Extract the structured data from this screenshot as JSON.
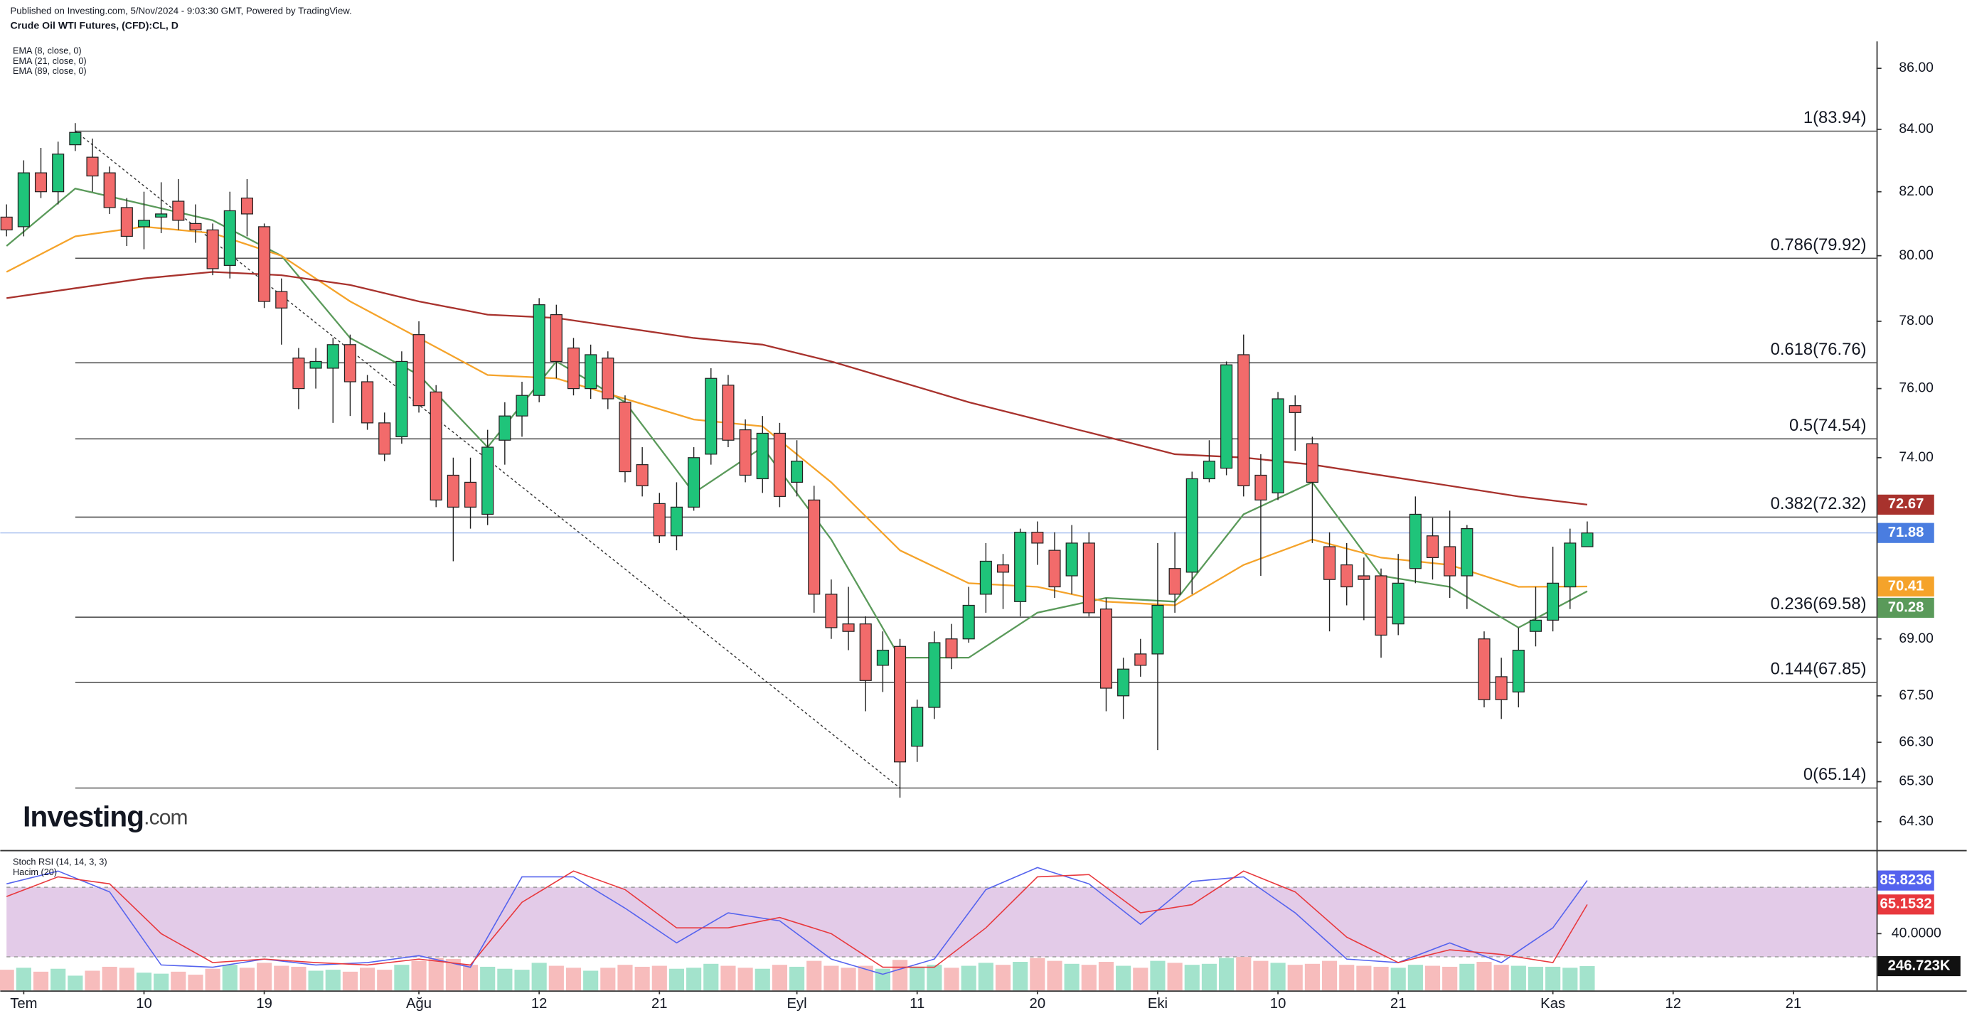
{
  "header": "Published on Investing.com, 5/Nov/2024 - 9:03:30 GMT, Powered by TradingView.",
  "logo": {
    "name": "Investing",
    "suffix": ".com"
  },
  "chart_data": {
    "type": "candlestick",
    "title": "Crude Oil WTI Futures, (CFD):CL, D",
    "log_scale": true,
    "categories": [
      null,
      "Tem",
      null,
      null,
      null,
      null,
      null,
      null,
      "10",
      null,
      null,
      null,
      null,
      null,
      null,
      "19",
      null,
      null,
      null,
      null,
      null,
      null,
      null,
      null,
      "Ağu",
      null,
      null,
      null,
      null,
      null,
      null,
      "12",
      null,
      null,
      null,
      null,
      null,
      null,
      "21",
      null,
      null,
      null,
      null,
      null,
      null,
      null,
      "Eyl",
      null,
      null,
      null,
      null,
      null,
      null,
      "11",
      null,
      null,
      null,
      null,
      null,
      null,
      "20",
      null,
      null,
      null,
      null,
      null,
      null,
      "Eki",
      null,
      null,
      null,
      null,
      null,
      null,
      "10",
      null,
      null,
      null,
      null,
      null,
      null,
      "21",
      null,
      null,
      null,
      null,
      null,
      null,
      null,
      null,
      "Kas",
      null,
      null,
      null,
      null,
      null,
      null,
      "12",
      null,
      null,
      null,
      null,
      null,
      null,
      "21",
      null,
      null,
      null
    ],
    "open": [
      81.2,
      80.9,
      82.6,
      82.0,
      83.5,
      83.1,
      82.6,
      81.5,
      80.9,
      81.2,
      81.7,
      81.0,
      80.8,
      79.7,
      81.8,
      80.9,
      78.9,
      76.9,
      76.6,
      76.6,
      77.3,
      76.2,
      75.0,
      74.6,
      77.6,
      75.9,
      73.5,
      73.3,
      72.4,
      74.5,
      75.2,
      75.8,
      78.2,
      77.2,
      76.0,
      76.9,
      75.6,
      73.8,
      72.7,
      71.8,
      72.6,
      74.1,
      76.1,
      74.8,
      73.4,
      74.7,
      73.3,
      72.8,
      70.2,
      69.4,
      69.4,
      68.3,
      68.8,
      66.2,
      67.2,
      69.0,
      69.0,
      70.2,
      71.0,
      70.0,
      71.9,
      71.4,
      70.7,
      71.6,
      69.8,
      67.5,
      68.6,
      68.6,
      70.9,
      70.8,
      73.4,
      73.7,
      77.0,
      73.5,
      73.0,
      75.5,
      74.4,
      71.5,
      71.0,
      70.7,
      70.7,
      69.4,
      70.9,
      71.8,
      71.5,
      70.7,
      69.0,
      68.0,
      67.6,
      69.2,
      69.5,
      70.4,
      71.5,
      null,
      null,
      null,
      null,
      null,
      null,
      null,
      null,
      null,
      null,
      null,
      null,
      null,
      null,
      null
    ],
    "high": [
      81.6,
      83.0,
      83.4,
      83.6,
      84.2,
      83.7,
      82.8,
      81.8,
      82.0,
      82.3,
      82.4,
      81.6,
      81.0,
      82.0,
      82.4,
      81.0,
      79.3,
      77.2,
      77.2,
      77.5,
      77.6,
      76.4,
      75.3,
      77.1,
      78.0,
      76.1,
      74.0,
      74.0,
      74.8,
      75.6,
      76.2,
      78.7,
      78.5,
      77.5,
      77.3,
      77.1,
      75.8,
      74.3,
      73.0,
      73.3,
      74.3,
      76.6,
      76.4,
      75.1,
      75.2,
      75.0,
      74.5,
      73.2,
      70.6,
      70.4,
      69.6,
      69.2,
      69.0,
      67.4,
      69.2,
      69.4,
      70.4,
      71.6,
      71.3,
      72.0,
      72.2,
      71.9,
      72.1,
      71.9,
      70.1,
      68.5,
      69.0,
      71.6,
      71.9,
      73.6,
      74.5,
      76.8,
      77.6,
      74.1,
      75.9,
      75.8,
      74.6,
      71.9,
      71.6,
      71.2,
      70.9,
      71.3,
      72.9,
      72.3,
      72.5,
      72.1,
      69.2,
      68.5,
      69.3,
      70.4,
      71.5,
      72.0,
      72.2,
      null,
      null,
      null,
      null,
      null,
      null,
      null,
      null,
      null,
      null,
      null,
      null,
      null,
      null,
      null
    ],
    "low": [
      80.6,
      80.6,
      81.8,
      81.6,
      83.3,
      82.0,
      81.3,
      80.3,
      80.2,
      80.7,
      80.8,
      80.4,
      79.4,
      79.3,
      80.6,
      78.4,
      77.3,
      75.4,
      76.0,
      75.0,
      75.2,
      74.8,
      73.9,
      74.4,
      75.3,
      72.6,
      71.1,
      72.0,
      72.1,
      73.8,
      74.6,
      75.6,
      76.3,
      75.8,
      75.7,
      75.4,
      73.3,
      72.9,
      71.6,
      71.4,
      72.5,
      73.8,
      74.3,
      73.3,
      73.0,
      72.6,
      72.9,
      69.7,
      69.0,
      68.7,
      67.1,
      67.6,
      64.9,
      65.8,
      66.9,
      68.2,
      68.9,
      69.7,
      69.8,
      69.6,
      71.0,
      70.1,
      70.2,
      69.6,
      67.1,
      66.9,
      68.0,
      66.1,
      69.7,
      70.2,
      73.3,
      73.5,
      72.9,
      70.7,
      72.8,
      74.2,
      71.6,
      69.2,
      69.9,
      69.5,
      68.5,
      69.1,
      70.5,
      70.6,
      70.1,
      69.8,
      67.2,
      66.9,
      67.2,
      68.8,
      69.2,
      69.8,
      71.6,
      null,
      null,
      null,
      null,
      null,
      null,
      null,
      null,
      null,
      null,
      null,
      null,
      null,
      null,
      null
    ],
    "close": [
      80.8,
      82.6,
      82.0,
      83.2,
      83.9,
      82.5,
      81.5,
      80.6,
      81.1,
      81.3,
      81.1,
      80.8,
      79.6,
      81.4,
      81.3,
      78.6,
      78.4,
      76.0,
      76.8,
      77.3,
      76.2,
      75.0,
      74.1,
      76.8,
      75.5,
      72.8,
      72.6,
      72.6,
      74.3,
      75.2,
      75.8,
      78.5,
      76.8,
      76.0,
      77.0,
      75.7,
      73.6,
      73.2,
      71.8,
      72.6,
      74.0,
      76.3,
      74.5,
      73.5,
      74.7,
      72.9,
      73.9,
      70.2,
      69.3,
      69.2,
      67.9,
      68.7,
      65.8,
      67.2,
      68.9,
      68.5,
      69.9,
      71.1,
      70.8,
      71.9,
      71.6,
      70.4,
      71.6,
      69.7,
      67.7,
      68.2,
      68.3,
      69.9,
      70.2,
      73.4,
      73.9,
      76.7,
      73.2,
      72.8,
      75.7,
      75.3,
      73.3,
      70.6,
      70.4,
      70.6,
      69.1,
      70.5,
      72.4,
      71.2,
      70.7,
      72.0,
      67.4,
      67.4,
      68.7,
      69.5,
      70.5,
      71.6,
      71.88,
      null,
      null,
      null,
      null,
      null,
      null,
      null,
      null,
      null,
      null,
      null,
      null,
      null,
      null,
      null
    ],
    "up_color": "#1fc47a",
    "down_color": "#f26b6b",
    "last_price_color": "#4a7de0",
    "ylim": [
      63.6,
      86.9
    ],
    "yticks": [
      {
        "value": 86,
        "label": "86.00"
      },
      {
        "value": 84,
        "label": "84.00"
      },
      {
        "value": 82,
        "label": "82.00"
      },
      {
        "value": 80,
        "label": "80.00"
      },
      {
        "value": 78,
        "label": "78.00"
      },
      {
        "value": 76,
        "label": "76.00"
      },
      {
        "value": 74,
        "label": "74.00"
      },
      {
        "value": 69,
        "label": "69.00"
      },
      {
        "value": 67.5,
        "label": "67.50"
      },
      {
        "value": 66.3,
        "label": "66.30"
      },
      {
        "value": 65.3,
        "label": "65.30"
      },
      {
        "value": 64.3,
        "label": "64.30"
      }
    ],
    "series": [
      {
        "name": "EMA (8, close, 0)",
        "color": "#5a9a5a",
        "x": [
          0,
          4,
          8,
          12,
          16,
          20,
          24,
          28,
          32,
          36,
          40,
          44,
          48,
          52,
          56,
          60,
          64,
          68,
          72,
          76,
          80,
          84,
          88,
          92
        ],
        "values": [
          80.3,
          82.1,
          81.6,
          81.1,
          80.0,
          77.5,
          76.4,
          74.3,
          76.8,
          75.6,
          73.0,
          74.3,
          71.7,
          68.5,
          68.5,
          69.7,
          70.1,
          70.0,
          72.4,
          73.3,
          70.7,
          70.4,
          69.3,
          70.28
        ]
      },
      {
        "name": "EMA (21, close, 0)",
        "color": "#f5a32a",
        "x": [
          0,
          4,
          8,
          12,
          16,
          20,
          24,
          28,
          32,
          36,
          40,
          44,
          48,
          52,
          56,
          60,
          64,
          68,
          72,
          76,
          80,
          84,
          88,
          92
        ],
        "values": [
          79.5,
          80.6,
          80.9,
          80.7,
          80.0,
          78.6,
          77.5,
          76.4,
          76.3,
          75.7,
          75.1,
          74.9,
          73.3,
          71.4,
          70.5,
          70.4,
          70.0,
          69.9,
          71.0,
          71.7,
          71.2,
          71.0,
          70.4,
          70.41
        ]
      },
      {
        "name": "EMA (89, close, 0)",
        "color": "#a8322d",
        "x": [
          0,
          4,
          8,
          12,
          16,
          20,
          24,
          28,
          32,
          36,
          40,
          44,
          48,
          52,
          56,
          60,
          64,
          68,
          72,
          76,
          80,
          84,
          88,
          92
        ],
        "values": [
          78.7,
          79.0,
          79.3,
          79.5,
          79.4,
          79.1,
          78.6,
          78.2,
          78.1,
          77.8,
          77.5,
          77.3,
          76.8,
          76.2,
          75.6,
          75.1,
          74.6,
          74.1,
          74.0,
          73.8,
          73.5,
          73.2,
          72.9,
          72.67
        ]
      }
    ],
    "fib_levels": [
      {
        "value": 83.94,
        "label": "1(83.94)"
      },
      {
        "value": 79.92,
        "label": "0.786(79.92)"
      },
      {
        "value": 76.76,
        "label": "0.618(76.76)"
      },
      {
        "value": 74.54,
        "label": "0.5(74.54)"
      },
      {
        "value": 72.32,
        "label": "0.382(72.32)"
      },
      {
        "value": 69.58,
        "label": "0.236(69.58)"
      },
      {
        "value": 67.85,
        "label": "0.144(67.85)"
      },
      {
        "value": 65.14,
        "label": "0(65.14)"
      }
    ],
    "trend_line": {
      "x": [
        4,
        52
      ],
      "values": [
        83.94,
        65.14
      ]
    },
    "stoch": {
      "title": "Stoch RSI (14, 14, 3, 3)",
      "ylim": [
        -9,
        110
      ],
      "yticks": [
        {
          "value": 40,
          "label": "40.0000"
        }
      ],
      "band": [
        20,
        80
      ],
      "band_color": "#e3cbe8",
      "series": [
        {
          "color": "#5563ee",
          "x": [
            0,
            3,
            6,
            9,
            12,
            15,
            18,
            21,
            24,
            27,
            30,
            33,
            36,
            39,
            42,
            45,
            48,
            51,
            54,
            57,
            60,
            63,
            66,
            69,
            72,
            75,
            78,
            81,
            84,
            87,
            90,
            92
          ],
          "values": [
            83,
            94,
            76,
            13,
            11,
            18,
            13,
            15,
            21,
            11,
            89,
            89,
            62,
            32,
            58,
            51,
            18,
            5,
            18,
            78,
            97,
            83,
            48,
            85,
            89,
            58,
            18,
            15,
            32,
            15,
            45,
            85.8236
          ]
        },
        {
          "color": "#e8383d",
          "x": [
            0,
            3,
            6,
            9,
            12,
            15,
            18,
            21,
            24,
            27,
            30,
            33,
            36,
            39,
            42,
            45,
            48,
            51,
            54,
            57,
            60,
            63,
            66,
            69,
            72,
            75,
            78,
            81,
            84,
            87,
            90,
            92
          ],
          "values": [
            72,
            89,
            83,
            40,
            15,
            18,
            15,
            13,
            18,
            13,
            67,
            94,
            78,
            45,
            45,
            54,
            40,
            11,
            11,
            45,
            89,
            91,
            58,
            65,
            94,
            76,
            37,
            15,
            26,
            22,
            15,
            65.1532
          ]
        }
      ]
    },
    "volume": {
      "title": "Hacim (20)",
      "ylim": [
        0,
        1400000
      ],
      "up_color": "#a3e3cc",
      "down_color": "#f7bcbc",
      "last_label": "246.723K",
      "values": [
        210000,
        230000,
        190000,
        220000,
        150000,
        200000,
        240000,
        230000,
        180000,
        170000,
        190000,
        160000,
        220000,
        260000,
        230000,
        280000,
        250000,
        240000,
        200000,
        210000,
        190000,
        230000,
        210000,
        260000,
        300000,
        330000,
        320000,
        260000,
        240000,
        220000,
        210000,
        280000,
        250000,
        230000,
        200000,
        230000,
        260000,
        240000,
        250000,
        220000,
        230000,
        270000,
        250000,
        230000,
        220000,
        260000,
        240000,
        300000,
        250000,
        230000,
        250000,
        220000,
        310000,
        240000,
        260000,
        230000,
        250000,
        280000,
        260000,
        290000,
        330000,
        300000,
        270000,
        260000,
        290000,
        250000,
        230000,
        300000,
        280000,
        260000,
        270000,
        330000,
        340000,
        300000,
        280000,
        260000,
        270000,
        300000,
        260000,
        250000,
        240000,
        230000,
        260000,
        250000,
        240000,
        270000,
        290000,
        260000,
        250000,
        240000,
        240000,
        230000,
        246723,
        null,
        null,
        null,
        null,
        null,
        null,
        null,
        null,
        null,
        null,
        null,
        null,
        null,
        null,
        null
      ]
    }
  }
}
